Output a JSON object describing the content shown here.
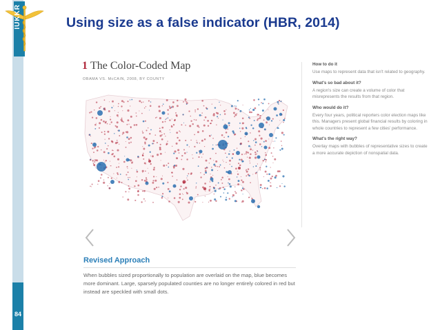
{
  "slide": {
    "title": "Using size as a false indicator (HBR, 2014)",
    "page_number": "84",
    "logo_text": "IUKKR"
  },
  "figure": {
    "number": "1",
    "title": "The Color-Coded Map",
    "subtitle": "OBAMA VS. McCAIN, 2008, BY COUNTY",
    "revised_title": "Revised Approach",
    "revised_body": "When bubbles sized proportionally to population are overlaid on the map, blue becomes more dominant. Large, sparsely populated counties are no longer entirely colored in red but instead are speckled with small dots.",
    "colors": {
      "red": "#b0273b",
      "blue": "#2a6fb0"
    }
  },
  "sidebar": [
    {
      "heading": "How to do it",
      "text": "Use maps to represent data that isn't related to geography."
    },
    {
      "heading": "What's so bad about it?",
      "text": "A region's size can create a volume of color that misrepresents the results from that region."
    },
    {
      "heading": "Who would do it?",
      "text": "Every four years, political reporters color election maps like this. Managers present global financial results by coloring in whole countries to represent a few cities' performance."
    },
    {
      "heading": "What's the right way?",
      "text": "Overlay maps with bubbles of representative sizes to create a more accurate depiction of nonspatial data."
    }
  ],
  "navigation": {
    "prev_icon": "chevron-left-icon",
    "next_icon": "chevron-right-icon"
  }
}
